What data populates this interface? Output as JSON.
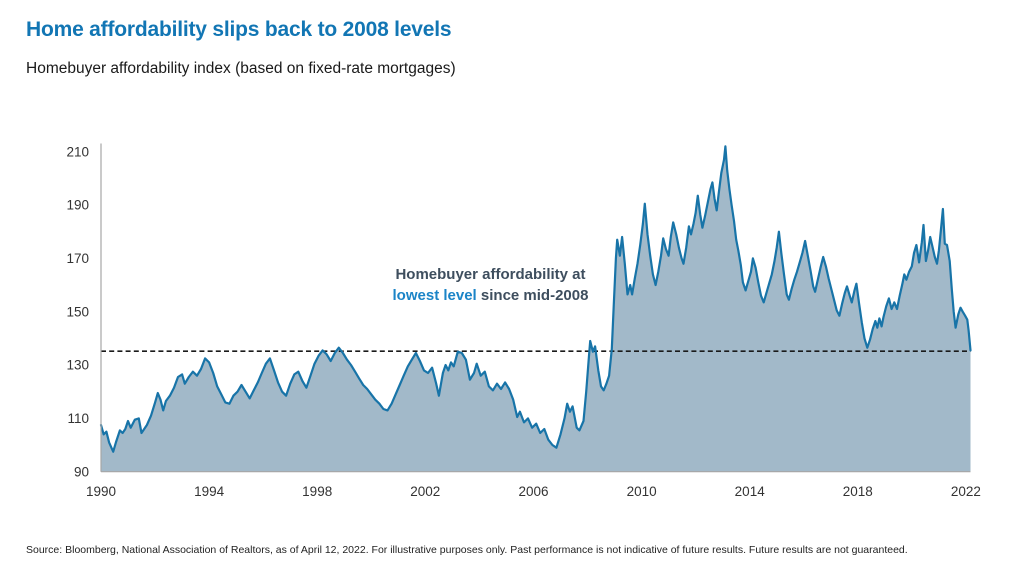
{
  "header": {
    "title": "Home affordability slips back to 2008 levels",
    "subtitle": "Homebuyer affordability index (based on fixed-rate mortgages)"
  },
  "annotation": {
    "line1": "Homebuyer affordability at",
    "highlight": "lowest level",
    "rest": " since mid-2008"
  },
  "footer": {
    "source": "Source: Bloomberg, National Association of Realtors, as of April 12, 2022. For illustrative purposes only. Past performance is not indicative of future results. Future results are not guaranteed."
  },
  "colors": {
    "title_blue": "#1276b4",
    "annotation_dark": "#3e4e5e",
    "annotation_blue": "#1b84c7",
    "line_blue": "#1874a8",
    "fill_blue_gray": "#a2b9c9",
    "axis_gray": "#a6a6a6",
    "tick_text": "#333333",
    "reference_black": "#1a1a1a"
  },
  "chart_data": {
    "type": "area",
    "title": "Home affordability slips back to 2008 levels",
    "subtitle": "Homebuyer affordability index (based on fixed-rate mortgages)",
    "series_name": "Homebuyer affordability index",
    "xlabel": "",
    "ylabel": "",
    "xlim": [
      1990,
      2022.17
    ],
    "ylim": [
      90,
      210
    ],
    "xticks": [
      1990,
      1994,
      1998,
      2002,
      2006,
      2010,
      2014,
      2018,
      2022
    ],
    "yticks": [
      90,
      110,
      130,
      150,
      170,
      190,
      210
    ],
    "grid": false,
    "legend": "none",
    "reference_line": {
      "value": 135.2,
      "style": "dashed",
      "meaning": "lowest level since mid-2008"
    },
    "points": [
      [
        1990.0,
        107.5
      ],
      [
        1990.1,
        104
      ],
      [
        1990.2,
        105
      ],
      [
        1990.3,
        101
      ],
      [
        1990.45,
        97.5
      ],
      [
        1990.55,
        101
      ],
      [
        1990.7,
        105.5
      ],
      [
        1990.8,
        104.5
      ],
      [
        1990.9,
        106
      ],
      [
        1991.0,
        109
      ],
      [
        1991.1,
        106.5
      ],
      [
        1991.25,
        109.5
      ],
      [
        1991.4,
        110
      ],
      [
        1991.5,
        104.5
      ],
      [
        1991.6,
        106
      ],
      [
        1991.7,
        107.5
      ],
      [
        1991.85,
        111
      ],
      [
        1992.0,
        116
      ],
      [
        1992.1,
        119.5
      ],
      [
        1992.2,
        117
      ],
      [
        1992.3,
        113
      ],
      [
        1992.4,
        116.5
      ],
      [
        1992.55,
        118.5
      ],
      [
        1992.7,
        121.5
      ],
      [
        1992.85,
        125.5
      ],
      [
        1993.0,
        126.5
      ],
      [
        1993.1,
        123
      ],
      [
        1993.25,
        125.5
      ],
      [
        1993.4,
        127.5
      ],
      [
        1993.55,
        126
      ],
      [
        1993.7,
        128.5
      ],
      [
        1993.85,
        132.5
      ],
      [
        1994.0,
        131
      ],
      [
        1994.15,
        127
      ],
      [
        1994.3,
        122
      ],
      [
        1994.45,
        119
      ],
      [
        1994.6,
        116
      ],
      [
        1994.75,
        115.5
      ],
      [
        1994.9,
        118.5
      ],
      [
        1995.05,
        120
      ],
      [
        1995.2,
        122.5
      ],
      [
        1995.35,
        120
      ],
      [
        1995.5,
        117.5
      ],
      [
        1995.65,
        120.5
      ],
      [
        1995.8,
        123.5
      ],
      [
        1995.95,
        127
      ],
      [
        1996.1,
        130.5
      ],
      [
        1996.25,
        132.5
      ],
      [
        1996.4,
        128
      ],
      [
        1996.55,
        123.5
      ],
      [
        1996.7,
        120
      ],
      [
        1996.85,
        118.5
      ],
      [
        1997.0,
        123
      ],
      [
        1997.15,
        126.5
      ],
      [
        1997.3,
        127.5
      ],
      [
        1997.45,
        124
      ],
      [
        1997.6,
        121.5
      ],
      [
        1997.75,
        126
      ],
      [
        1997.9,
        130.5
      ],
      [
        1998.05,
        133.5
      ],
      [
        1998.2,
        135.5
      ],
      [
        1998.35,
        134
      ],
      [
        1998.5,
        131.5
      ],
      [
        1998.65,
        134.5
      ],
      [
        1998.8,
        136.5
      ],
      [
        1998.95,
        134.5
      ],
      [
        1999.1,
        132
      ],
      [
        1999.25,
        130
      ],
      [
        1999.4,
        127.5
      ],
      [
        1999.55,
        125
      ],
      [
        1999.7,
        122.5
      ],
      [
        1999.85,
        121
      ],
      [
        2000.0,
        119
      ],
      [
        2000.15,
        117
      ],
      [
        2000.3,
        115.5
      ],
      [
        2000.45,
        113.5
      ],
      [
        2000.6,
        113
      ],
      [
        2000.75,
        115.5
      ],
      [
        2000.9,
        119
      ],
      [
        2001.05,
        122.5
      ],
      [
        2001.2,
        126
      ],
      [
        2001.35,
        129.5
      ],
      [
        2001.5,
        132
      ],
      [
        2001.65,
        134.5
      ],
      [
        2001.8,
        131.5
      ],
      [
        2001.95,
        128
      ],
      [
        2002.1,
        127
      ],
      [
        2002.25,
        129
      ],
      [
        2002.4,
        123
      ],
      [
        2002.5,
        118.5
      ],
      [
        2002.65,
        127
      ],
      [
        2002.75,
        130
      ],
      [
        2002.85,
        128
      ],
      [
        2002.95,
        131
      ],
      [
        2003.05,
        129.5
      ],
      [
        2003.2,
        135
      ],
      [
        2003.35,
        134.5
      ],
      [
        2003.5,
        132
      ],
      [
        2003.65,
        124.5
      ],
      [
        2003.8,
        127
      ],
      [
        2003.9,
        130.5
      ],
      [
        2004.05,
        126
      ],
      [
        2004.2,
        127.5
      ],
      [
        2004.35,
        122
      ],
      [
        2004.5,
        120.5
      ],
      [
        2004.65,
        123
      ],
      [
        2004.8,
        121
      ],
      [
        2004.95,
        123.5
      ],
      [
        2005.1,
        121
      ],
      [
        2005.25,
        117
      ],
      [
        2005.4,
        110.5
      ],
      [
        2005.5,
        112.5
      ],
      [
        2005.65,
        108.5
      ],
      [
        2005.8,
        110
      ],
      [
        2005.95,
        106.5
      ],
      [
        2006.1,
        108
      ],
      [
        2006.25,
        104.5
      ],
      [
        2006.4,
        106
      ],
      [
        2006.55,
        102
      ],
      [
        2006.7,
        100
      ],
      [
        2006.85,
        99
      ],
      [
        2007.0,
        104
      ],
      [
        2007.15,
        110
      ],
      [
        2007.25,
        115.5
      ],
      [
        2007.35,
        112.5
      ],
      [
        2007.45,
        114.5
      ],
      [
        2007.6,
        106.5
      ],
      [
        2007.7,
        105.5
      ],
      [
        2007.85,
        109
      ],
      [
        2007.95,
        120
      ],
      [
        2008.05,
        133
      ],
      [
        2008.1,
        139
      ],
      [
        2008.2,
        135
      ],
      [
        2008.28,
        137
      ],
      [
        2008.4,
        128
      ],
      [
        2008.5,
        122
      ],
      [
        2008.6,
        120.5
      ],
      [
        2008.7,
        123
      ],
      [
        2008.8,
        126
      ],
      [
        2008.9,
        136
      ],
      [
        2008.97,
        152
      ],
      [
        2009.05,
        170
      ],
      [
        2009.1,
        177
      ],
      [
        2009.2,
        171
      ],
      [
        2009.28,
        178
      ],
      [
        2009.38,
        168
      ],
      [
        2009.48,
        156.5
      ],
      [
        2009.58,
        160
      ],
      [
        2009.65,
        156.5
      ],
      [
        2009.75,
        162.5
      ],
      [
        2009.85,
        168
      ],
      [
        2009.95,
        175
      ],
      [
        2010.05,
        183
      ],
      [
        2010.12,
        190.5
      ],
      [
        2010.22,
        179
      ],
      [
        2010.32,
        171
      ],
      [
        2010.42,
        164
      ],
      [
        2010.52,
        160
      ],
      [
        2010.62,
        165
      ],
      [
        2010.72,
        171
      ],
      [
        2010.8,
        177.5
      ],
      [
        2010.9,
        173.5
      ],
      [
        2011.0,
        171
      ],
      [
        2011.08,
        178
      ],
      [
        2011.17,
        183.5
      ],
      [
        2011.28,
        179
      ],
      [
        2011.38,
        174
      ],
      [
        2011.48,
        170
      ],
      [
        2011.55,
        168
      ],
      [
        2011.65,
        174
      ],
      [
        2011.75,
        182
      ],
      [
        2011.83,
        179
      ],
      [
        2011.92,
        183
      ],
      [
        2012.0,
        187
      ],
      [
        2012.08,
        193.5
      ],
      [
        2012.17,
        186.5
      ],
      [
        2012.25,
        181.5
      ],
      [
        2012.35,
        186
      ],
      [
        2012.45,
        191
      ],
      [
        2012.55,
        196
      ],
      [
        2012.62,
        198.5
      ],
      [
        2012.7,
        192.5
      ],
      [
        2012.78,
        188
      ],
      [
        2012.85,
        194
      ],
      [
        2012.95,
        202
      ],
      [
        2013.05,
        207
      ],
      [
        2013.1,
        212
      ],
      [
        2013.17,
        203
      ],
      [
        2013.25,
        196
      ],
      [
        2013.33,
        190
      ],
      [
        2013.42,
        184
      ],
      [
        2013.5,
        177
      ],
      [
        2013.58,
        173
      ],
      [
        2013.67,
        167.5
      ],
      [
        2013.75,
        161
      ],
      [
        2013.85,
        158
      ],
      [
        2013.95,
        161.5
      ],
      [
        2014.05,
        165
      ],
      [
        2014.12,
        170
      ],
      [
        2014.22,
        166.5
      ],
      [
        2014.32,
        161
      ],
      [
        2014.42,
        156
      ],
      [
        2014.52,
        153.5
      ],
      [
        2014.62,
        157
      ],
      [
        2014.72,
        160.5
      ],
      [
        2014.82,
        164
      ],
      [
        2014.92,
        169
      ],
      [
        2015.0,
        174
      ],
      [
        2015.08,
        180
      ],
      [
        2015.17,
        172
      ],
      [
        2015.27,
        164
      ],
      [
        2015.37,
        156.5
      ],
      [
        2015.45,
        154.5
      ],
      [
        2015.55,
        158.5
      ],
      [
        2015.65,
        162
      ],
      [
        2015.75,
        165
      ],
      [
        2015.85,
        168.5
      ],
      [
        2015.95,
        172
      ],
      [
        2016.05,
        176.5
      ],
      [
        2016.15,
        171
      ],
      [
        2016.25,
        165.5
      ],
      [
        2016.35,
        159.5
      ],
      [
        2016.42,
        157.5
      ],
      [
        2016.52,
        162
      ],
      [
        2016.62,
        166.5
      ],
      [
        2016.72,
        170.5
      ],
      [
        2016.82,
        167
      ],
      [
        2016.92,
        162.5
      ],
      [
        2017.02,
        158.5
      ],
      [
        2017.12,
        154.5
      ],
      [
        2017.22,
        150.5
      ],
      [
        2017.32,
        148.5
      ],
      [
        2017.42,
        153
      ],
      [
        2017.52,
        157
      ],
      [
        2017.6,
        159.5
      ],
      [
        2017.7,
        156
      ],
      [
        2017.78,
        153.5
      ],
      [
        2017.88,
        158
      ],
      [
        2017.95,
        160.5
      ],
      [
        2018.05,
        153
      ],
      [
        2018.15,
        146
      ],
      [
        2018.25,
        140
      ],
      [
        2018.35,
        136.5
      ],
      [
        2018.45,
        139.5
      ],
      [
        2018.55,
        143.5
      ],
      [
        2018.65,
        146.5
      ],
      [
        2018.72,
        144
      ],
      [
        2018.8,
        147.5
      ],
      [
        2018.88,
        144.5
      ],
      [
        2018.95,
        148
      ],
      [
        2019.05,
        152
      ],
      [
        2019.15,
        155
      ],
      [
        2019.25,
        151
      ],
      [
        2019.35,
        153.5
      ],
      [
        2019.45,
        151
      ],
      [
        2019.55,
        156
      ],
      [
        2019.65,
        160.5
      ],
      [
        2019.72,
        164
      ],
      [
        2019.8,
        162
      ],
      [
        2019.9,
        165
      ],
      [
        2020.0,
        167
      ],
      [
        2020.08,
        172
      ],
      [
        2020.17,
        175
      ],
      [
        2020.27,
        168.5
      ],
      [
        2020.37,
        176
      ],
      [
        2020.43,
        182.5
      ],
      [
        2020.52,
        169
      ],
      [
        2020.6,
        173
      ],
      [
        2020.68,
        178
      ],
      [
        2020.77,
        174
      ],
      [
        2020.85,
        170.5
      ],
      [
        2020.93,
        168
      ],
      [
        2021.0,
        173
      ],
      [
        2021.08,
        181
      ],
      [
        2021.15,
        188.5
      ],
      [
        2021.22,
        175.5
      ],
      [
        2021.3,
        175
      ],
      [
        2021.4,
        169
      ],
      [
        2021.48,
        158
      ],
      [
        2021.55,
        150
      ],
      [
        2021.62,
        144
      ],
      [
        2021.72,
        149
      ],
      [
        2021.8,
        151.5
      ],
      [
        2021.88,
        150
      ],
      [
        2021.97,
        148.5
      ],
      [
        2022.05,
        147
      ],
      [
        2022.1,
        143
      ],
      [
        2022.17,
        135.5
      ]
    ]
  }
}
